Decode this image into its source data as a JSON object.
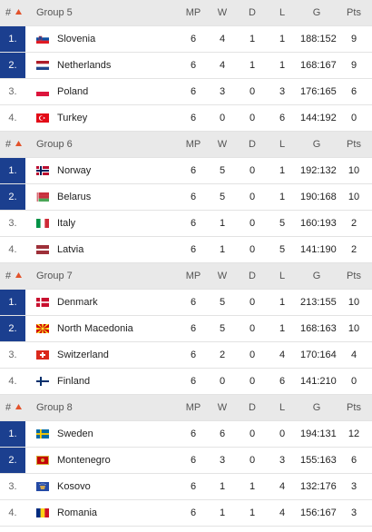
{
  "columns": {
    "rank": "#",
    "mp": "MP",
    "w": "W",
    "d": "D",
    "l": "L",
    "g": "G",
    "pts": "Pts"
  },
  "groups": [
    {
      "name": "Group 5",
      "rows": [
        {
          "rank": "1.",
          "team": "Slovenia",
          "mp": 6,
          "w": 4,
          "d": 1,
          "l": 1,
          "g": "188:152",
          "pts": 9
        },
        {
          "rank": "2.",
          "team": "Netherlands",
          "mp": 6,
          "w": 4,
          "d": 1,
          "l": 1,
          "g": "168:167",
          "pts": 9
        },
        {
          "rank": "3.",
          "team": "Poland",
          "mp": 6,
          "w": 3,
          "d": 0,
          "l": 3,
          "g": "176:165",
          "pts": 6
        },
        {
          "rank": "4.",
          "team": "Turkey",
          "mp": 6,
          "w": 0,
          "d": 0,
          "l": 6,
          "g": "144:192",
          "pts": 0
        }
      ]
    },
    {
      "name": "Group 6",
      "rows": [
        {
          "rank": "1.",
          "team": "Norway",
          "mp": 6,
          "w": 5,
          "d": 0,
          "l": 1,
          "g": "192:132",
          "pts": 10
        },
        {
          "rank": "2.",
          "team": "Belarus",
          "mp": 6,
          "w": 5,
          "d": 0,
          "l": 1,
          "g": "190:168",
          "pts": 10
        },
        {
          "rank": "3.",
          "team": "Italy",
          "mp": 6,
          "w": 1,
          "d": 0,
          "l": 5,
          "g": "160:193",
          "pts": 2
        },
        {
          "rank": "4.",
          "team": "Latvia",
          "mp": 6,
          "w": 1,
          "d": 0,
          "l": 5,
          "g": "141:190",
          "pts": 2
        }
      ]
    },
    {
      "name": "Group 7",
      "rows": [
        {
          "rank": "1.",
          "team": "Denmark",
          "mp": 6,
          "w": 5,
          "d": 0,
          "l": 1,
          "g": "213:155",
          "pts": 10
        },
        {
          "rank": "2.",
          "team": "North Macedonia",
          "mp": 6,
          "w": 5,
          "d": 0,
          "l": 1,
          "g": "168:163",
          "pts": 10
        },
        {
          "rank": "3.",
          "team": "Switzerland",
          "mp": 6,
          "w": 2,
          "d": 0,
          "l": 4,
          "g": "170:164",
          "pts": 4
        },
        {
          "rank": "4.",
          "team": "Finland",
          "mp": 6,
          "w": 0,
          "d": 0,
          "l": 6,
          "g": "141:210",
          "pts": 0
        }
      ]
    },
    {
      "name": "Group 8",
      "rows": [
        {
          "rank": "1.",
          "team": "Sweden",
          "mp": 6,
          "w": 6,
          "d": 0,
          "l": 0,
          "g": "194:131",
          "pts": 12
        },
        {
          "rank": "2.",
          "team": "Montenegro",
          "mp": 6,
          "w": 3,
          "d": 0,
          "l": 3,
          "g": "155:163",
          "pts": 6
        },
        {
          "rank": "3.",
          "team": "Kosovo",
          "mp": 6,
          "w": 1,
          "d": 1,
          "l": 4,
          "g": "132:176",
          "pts": 3
        },
        {
          "rank": "4.",
          "team": "Romania",
          "mp": 6,
          "w": 1,
          "d": 1,
          "l": 4,
          "g": "156:167",
          "pts": 3
        }
      ]
    }
  ]
}
